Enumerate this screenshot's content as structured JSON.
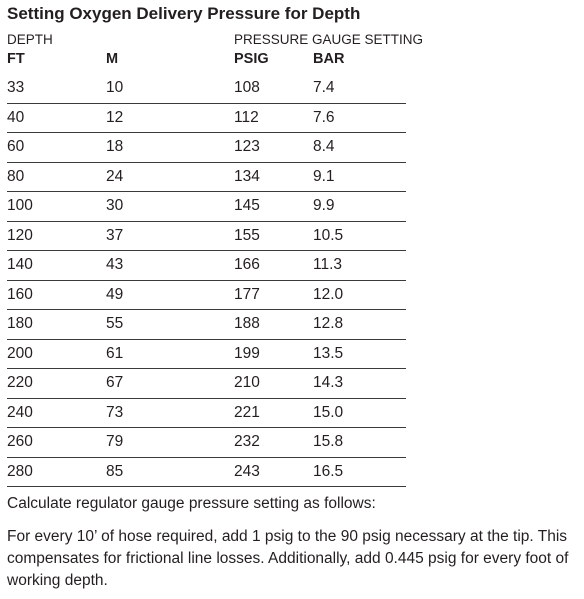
{
  "title": "Setting Oxygen Delivery Pressure for Depth",
  "groups": {
    "depth": "DEPTH",
    "pressure": "PRESSURE GAUGE SETTING"
  },
  "columns": {
    "ft": "FT",
    "m": "M",
    "psig": "PSIG",
    "bar": "BAR"
  },
  "rows": [
    {
      "ft": "33",
      "m": "10",
      "psig": "108",
      "bar": "7.4"
    },
    {
      "ft": "40",
      "m": "12",
      "psig": "112",
      "bar": "7.6"
    },
    {
      "ft": "60",
      "m": "18",
      "psig": "123",
      "bar": "8.4"
    },
    {
      "ft": "80",
      "m": "24",
      "psig": "134",
      "bar": "9.1"
    },
    {
      "ft": "100",
      "m": "30",
      "psig": "145",
      "bar": "9.9"
    },
    {
      "ft": "120",
      "m": "37",
      "psig": "155",
      "bar": "10.5"
    },
    {
      "ft": "140",
      "m": "43",
      "psig": "166",
      "bar": "11.3"
    },
    {
      "ft": "160",
      "m": "49",
      "psig": "177",
      "bar": "12.0"
    },
    {
      "ft": "180",
      "m": "55",
      "psig": "188",
      "bar": "12.8"
    },
    {
      "ft": "200",
      "m": "61",
      "psig": "199",
      "bar": "13.5"
    },
    {
      "ft": "220",
      "m": "67",
      "psig": "210",
      "bar": "14.3"
    },
    {
      "ft": "240",
      "m": "73",
      "psig": "221",
      "bar": "15.0"
    },
    {
      "ft": "260",
      "m": "79",
      "psig": "232",
      "bar": "15.8"
    },
    {
      "ft": "280",
      "m": "85",
      "psig": "243",
      "bar": "16.5"
    }
  ],
  "notes": {
    "intro": "Calculate regulator gauge pressure setting as follows:",
    "body": "For every 10’ of hose required, add 1 psig to the 90 psig necessary at the tip. This compensates for frictional line losses. Additionally, add 0.445 psig for every foot of working depth."
  }
}
